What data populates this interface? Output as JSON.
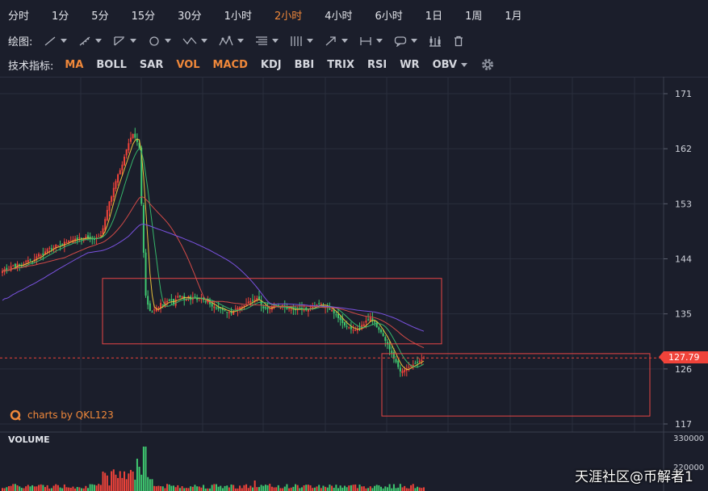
{
  "toolbar": {
    "periods": [
      {
        "label": "分时",
        "active": false
      },
      {
        "label": "1分",
        "active": false
      },
      {
        "label": "5分",
        "active": false
      },
      {
        "label": "15分",
        "active": false
      },
      {
        "label": "30分",
        "active": false
      },
      {
        "label": "1小时",
        "active": false
      },
      {
        "label": "2小时",
        "active": true
      },
      {
        "label": "4小时",
        "active": false
      },
      {
        "label": "6小时",
        "active": false
      },
      {
        "label": "1日",
        "active": false
      },
      {
        "label": "1周",
        "active": false
      },
      {
        "label": "1月",
        "active": false
      }
    ],
    "draw_label": "绘图:",
    "draw_tools": [
      "line-tool-icon",
      "measure-tool-icon",
      "angle-tool-icon",
      "circle-tool-icon",
      "wave-tool-icon",
      "pattern-tool-icon",
      "fib-tool-icon",
      "grid-tool-icon",
      "arrow-tool-icon",
      "range-tool-icon",
      "comment-tool-icon",
      "candle-toggle-icon",
      "trash-icon"
    ],
    "indicator_label": "技术指标:",
    "indicators": [
      {
        "label": "MA",
        "active": true
      },
      {
        "label": "BOLL",
        "active": false
      },
      {
        "label": "SAR",
        "active": false
      },
      {
        "label": "VOL",
        "active": true
      },
      {
        "label": "MACD",
        "active": true
      },
      {
        "label": "KDJ",
        "active": false
      },
      {
        "label": "BBI",
        "active": false
      },
      {
        "label": "TRIX",
        "active": false
      },
      {
        "label": "RSI",
        "active": false
      },
      {
        "label": "WR",
        "active": false
      },
      {
        "label": "OBV",
        "active": false,
        "dropdown": true
      }
    ]
  },
  "chart_data": {
    "type": "candlestick",
    "y_ticks": [
      171,
      162,
      153,
      144,
      135,
      126,
      117
    ],
    "ylim": [
      115.3,
      175.5
    ],
    "current_price": "127.79",
    "current_price_value": 127.79,
    "colors": {
      "up": "#f0433a",
      "down": "#3fc870",
      "ma_short": "#e8c13b",
      "ma_mid": "#36b76b",
      "ma_long": "#d24a47",
      "ma_xlong": "#7a52e0",
      "box": "#e84646",
      "price_line": "#f0433a",
      "grid": "#2a2e3c",
      "axis_text": "#cfd2da"
    },
    "series_close": [
      142.0,
      142.3,
      142.0,
      142.2,
      142.8,
      142.9,
      142.7,
      143.2,
      143.0,
      142.8,
      143.2,
      143.6,
      143.8,
      143.8,
      143.5,
      143.9,
      144.4,
      144.8,
      144.6,
      144.6,
      145.2,
      145.6,
      145.8,
      145.5,
      145.8,
      146.3,
      146.2,
      146.2,
      146.2,
      146.8,
      146.7,
      147.0,
      146.9,
      147.1,
      147.3,
      147.1,
      147.5,
      147.2,
      147.3,
      147.6,
      147.4,
      147.2,
      147.3,
      147.1,
      147.5,
      147.7,
      147.9,
      149.0,
      150.5,
      152.0,
      153.4,
      154.2,
      155.6,
      156.7,
      157.8,
      158.5,
      159.4,
      160.7,
      161.9,
      162.9,
      163.8,
      164.4,
      163.8,
      163.1,
      162.1,
      153.0,
      145.0,
      138.0,
      136.5,
      135.5,
      135.3,
      135.7,
      136.0,
      136.0,
      136.8,
      136.4,
      137.0,
      137.1,
      137.1,
      137.2,
      136.6,
      137.4,
      137.9,
      137.8,
      137.9,
      137.3,
      137.5,
      137.9,
      137.3,
      137.7,
      137.7,
      137.3,
      137.6,
      137.5,
      137.3,
      136.9,
      137.2,
      136.6,
      136.2,
      136.2,
      136.0,
      135.8,
      135.9,
      135.6,
      135.5,
      135.3,
      135.3,
      135.1,
      135.5,
      135.8,
      136.0,
      136.1,
      136.2,
      136.4,
      136.6,
      137.0,
      137.1,
      137.2,
      137.3,
      137.6,
      137.3,
      136.4,
      135.9,
      135.9,
      135.8,
      135.9,
      136.2,
      136.5,
      136.4,
      136.1,
      136.1,
      136.3,
      136.1,
      135.8,
      135.9,
      135.7,
      135.7,
      135.6,
      135.8,
      135.9,
      135.8,
      135.8,
      135.6,
      135.8,
      136.0,
      136.1,
      136.2,
      136.5,
      136.6,
      136.6,
      136.3,
      136.2,
      136.1,
      135.7,
      135.6,
      135.1,
      134.8,
      134.3,
      134.0,
      133.5,
      133.1,
      133.0,
      132.8,
      132.5,
      132.4,
      132.4,
      132.5,
      132.6,
      133.2,
      133.3,
      133.9,
      134.0,
      134.4,
      133.9,
      133.6,
      132.8,
      132.4,
      132.0,
      131.4,
      130.6,
      130.0,
      129.2,
      128.5,
      127.7,
      127.1,
      126.3,
      125.6,
      125.7,
      125.9,
      126.1,
      126.3,
      126.6,
      126.7,
      126.9,
      127.0,
      127.3,
      127.5,
      127.79
    ],
    "volume_ticks": [
      "330000",
      "220000"
    ]
  },
  "annotations": {
    "brand_text": "charts by QKL123",
    "volume_label": "VOLUME",
    "watermark": "天涯社区@币解者1"
  }
}
